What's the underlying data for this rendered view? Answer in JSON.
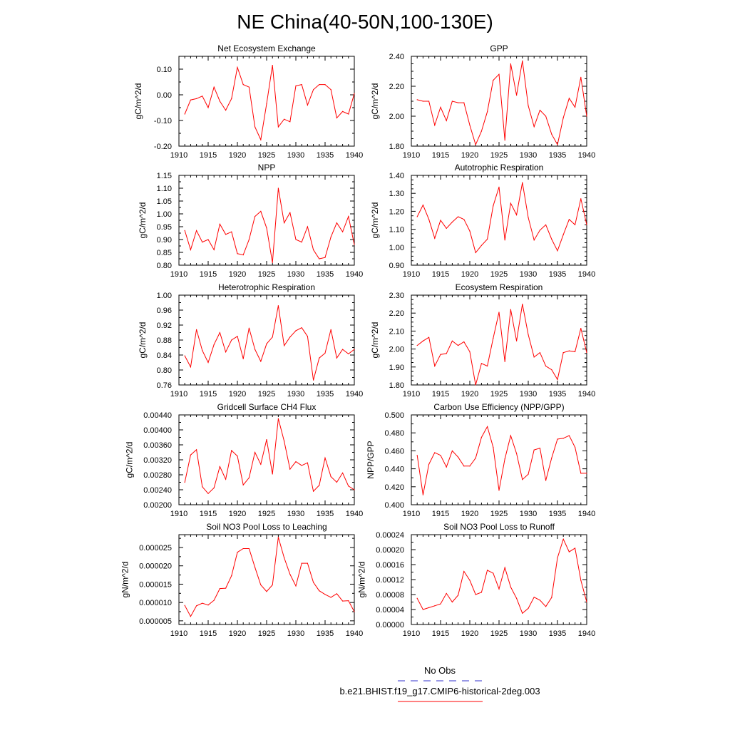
{
  "title": "NE China(40-50N,100-130E)",
  "colors": {
    "model_line": "#ff0000",
    "obs_line": "#0000ff",
    "axis": "#000000"
  },
  "legend": {
    "entries": [
      {
        "label": "No Obs",
        "style": "dashed",
        "color": "#3333cc"
      },
      {
        "label": "b.e21.BHIST.f19_g17.CMIP6-historical-2deg.003",
        "style": "solid",
        "color": "#ff0000"
      }
    ]
  },
  "chart_data": [
    {
      "type": "line",
      "title": "Net Ecosystem Exchange",
      "ylabel": "gC/m^2/d",
      "xlim": [
        1910,
        1940
      ],
      "ylim": [
        -0.2,
        0.15
      ],
      "xticks": [
        1910,
        1915,
        1920,
        1925,
        1930,
        1935,
        1940
      ],
      "xtick_labels": [
        "1910",
        "1915",
        "1920",
        "1925",
        "1930",
        "1935",
        "1940"
      ],
      "yticks": [
        -0.2,
        -0.1,
        0.0,
        0.1
      ],
      "ytick_labels": [
        "-0.20",
        "-0.10",
        "0.00",
        "0.10"
      ],
      "yminor": [
        -0.15,
        -0.05,
        0.05
      ],
      "x": [
        1911,
        1912,
        1913,
        1914,
        1915,
        1916,
        1917,
        1918,
        1919,
        1920,
        1921,
        1922,
        1923,
        1924,
        1925,
        1926,
        1927,
        1928,
        1929,
        1930,
        1931,
        1932,
        1933,
        1934,
        1935,
        1936,
        1937,
        1938,
        1939,
        1940
      ],
      "y": [
        -0.075,
        -0.02,
        -0.015,
        -0.005,
        -0.05,
        0.03,
        -0.025,
        -0.06,
        -0.015,
        0.107,
        0.04,
        0.03,
        -0.125,
        -0.175,
        -0.035,
        0.115,
        -0.125,
        -0.095,
        -0.105,
        0.035,
        0.04,
        -0.04,
        0.02,
        0.04,
        0.04,
        0.02,
        -0.09,
        -0.065,
        -0.075,
        0.005
      ]
    },
    {
      "type": "line",
      "title": "GPP",
      "ylabel": "gC/m^2/d",
      "xlim": [
        1910,
        1940
      ],
      "ylim": [
        1.8,
        2.4
      ],
      "xticks": [
        1910,
        1915,
        1920,
        1925,
        1930,
        1935,
        1940
      ],
      "xtick_labels": [
        "1910",
        "1915",
        "1920",
        "1925",
        "1930",
        "1935",
        "1940"
      ],
      "yticks": [
        1.8,
        2.0,
        2.2,
        2.4
      ],
      "ytick_labels": [
        "1.80",
        "2.00",
        "2.20",
        "2.40"
      ],
      "yminor": [
        1.85,
        1.9,
        1.95,
        2.05,
        2.1,
        2.15,
        2.25,
        2.3,
        2.35
      ],
      "x": [
        1911,
        1912,
        1913,
        1914,
        1915,
        1916,
        1917,
        1918,
        1919,
        1920,
        1921,
        1922,
        1923,
        1924,
        1925,
        1926,
        1927,
        1928,
        1929,
        1930,
        1931,
        1932,
        1933,
        1934,
        1935,
        1936,
        1937,
        1938,
        1939,
        1940
      ],
      "y": [
        2.11,
        2.1,
        2.1,
        1.94,
        2.06,
        1.97,
        2.1,
        2.09,
        2.09,
        1.94,
        1.81,
        1.9,
        2.03,
        2.24,
        2.28,
        1.84,
        2.35,
        2.14,
        2.37,
        2.07,
        1.93,
        2.04,
        2.0,
        1.88,
        1.81,
        1.99,
        2.12,
        2.06,
        2.26,
        2.0
      ]
    },
    {
      "type": "line",
      "title": "NPP",
      "ylabel": "gC/m^2/d",
      "xlim": [
        1910,
        1940
      ],
      "ylim": [
        0.8,
        1.15
      ],
      "xticks": [
        1910,
        1915,
        1920,
        1925,
        1930,
        1935,
        1940
      ],
      "xtick_labels": [
        "1910",
        "1915",
        "1920",
        "1925",
        "1930",
        "1935",
        "1940"
      ],
      "yticks": [
        0.8,
        0.85,
        0.9,
        0.95,
        1.0,
        1.05,
        1.1,
        1.15
      ],
      "ytick_labels": [
        "0.80",
        "0.85",
        "0.90",
        "0.95",
        "1.00",
        "1.05",
        "1.10",
        "1.15"
      ],
      "yminor": [
        0.825,
        0.875,
        0.925,
        0.975,
        1.025,
        1.075,
        1.125
      ],
      "x": [
        1911,
        1912,
        1913,
        1914,
        1915,
        1916,
        1917,
        1918,
        1919,
        1920,
        1921,
        1922,
        1923,
        1924,
        1925,
        1926,
        1927,
        1928,
        1929,
        1930,
        1931,
        1932,
        1933,
        1934,
        1935,
        1936,
        1937,
        1938,
        1939,
        1940
      ],
      "y": [
        0.935,
        0.86,
        0.935,
        0.89,
        0.9,
        0.86,
        0.96,
        0.92,
        0.93,
        0.845,
        0.84,
        0.9,
        0.99,
        1.01,
        0.945,
        0.81,
        1.1,
        0.965,
        1.005,
        0.9,
        0.89,
        0.95,
        0.86,
        0.825,
        0.83,
        0.91,
        0.965,
        0.93,
        0.99,
        0.88
      ]
    },
    {
      "type": "line",
      "title": "Autotrophic Respiration",
      "ylabel": "gC/m^2/d",
      "xlim": [
        1910,
        1940
      ],
      "ylim": [
        0.9,
        1.4
      ],
      "xticks": [
        1910,
        1915,
        1920,
        1925,
        1930,
        1935,
        1940
      ],
      "xtick_labels": [
        "1910",
        "1915",
        "1920",
        "1925",
        "1930",
        "1935",
        "1940"
      ],
      "yticks": [
        0.9,
        1.0,
        1.1,
        1.2,
        1.3,
        1.4
      ],
      "ytick_labels": [
        "0.90",
        "1.00",
        "1.10",
        "1.20",
        "1.30",
        "1.40"
      ],
      "yminor": [
        0.925,
        0.95,
        0.975,
        1.025,
        1.05,
        1.075,
        1.125,
        1.15,
        1.175,
        1.225,
        1.25,
        1.275,
        1.325,
        1.35,
        1.375
      ],
      "x": [
        1911,
        1912,
        1913,
        1914,
        1915,
        1916,
        1917,
        1918,
        1919,
        1920,
        1921,
        1922,
        1923,
        1924,
        1925,
        1926,
        1927,
        1928,
        1929,
        1930,
        1931,
        1932,
        1933,
        1934,
        1935,
        1936,
        1937,
        1938,
        1939,
        1940
      ],
      "y": [
        1.17,
        1.235,
        1.155,
        1.05,
        1.15,
        1.105,
        1.14,
        1.17,
        1.155,
        1.09,
        0.97,
        1.01,
        1.045,
        1.23,
        1.335,
        1.04,
        1.245,
        1.18,
        1.36,
        1.165,
        1.04,
        1.095,
        1.125,
        1.045,
        0.98,
        1.07,
        1.155,
        1.125,
        1.27,
        1.125
      ]
    },
    {
      "type": "line",
      "title": "Heterotrophic Respiration",
      "ylabel": "gC/m^2/d",
      "xlim": [
        1910,
        1940
      ],
      "ylim": [
        0.76,
        1.0
      ],
      "xticks": [
        1910,
        1915,
        1920,
        1925,
        1930,
        1935,
        1940
      ],
      "xtick_labels": [
        "1910",
        "1915",
        "1920",
        "1925",
        "1930",
        "1935",
        "1940"
      ],
      "yticks": [
        0.76,
        0.8,
        0.84,
        0.88,
        0.92,
        0.96,
        1.0
      ],
      "ytick_labels": [
        "0.76",
        "0.80",
        "0.84",
        "0.88",
        "0.92",
        "0.96",
        "1.00"
      ],
      "yminor": [
        0.78,
        0.82,
        0.86,
        0.9,
        0.94,
        0.98
      ],
      "x": [
        1911,
        1912,
        1913,
        1914,
        1915,
        1916,
        1917,
        1918,
        1919,
        1920,
        1921,
        1922,
        1923,
        1924,
        1925,
        1926,
        1927,
        1928,
        1929,
        1930,
        1931,
        1932,
        1933,
        1934,
        1935,
        1936,
        1937,
        1938,
        1939,
        1940
      ],
      "y": [
        0.838,
        0.808,
        0.908,
        0.852,
        0.82,
        0.868,
        0.9,
        0.848,
        0.88,
        0.89,
        0.83,
        0.912,
        0.855,
        0.823,
        0.87,
        0.888,
        0.972,
        0.865,
        0.888,
        0.905,
        0.913,
        0.89,
        0.773,
        0.832,
        0.845,
        0.908,
        0.832,
        0.855,
        0.843,
        0.855
      ]
    },
    {
      "type": "line",
      "title": "Ecosystem Respiration",
      "ylabel": "gC/m^2/d",
      "xlim": [
        1910,
        1940
      ],
      "ylim": [
        1.8,
        2.3
      ],
      "xticks": [
        1910,
        1915,
        1920,
        1925,
        1930,
        1935,
        1940
      ],
      "xtick_labels": [
        "1910",
        "1915",
        "1920",
        "1925",
        "1930",
        "1935",
        "1940"
      ],
      "yticks": [
        1.8,
        1.9,
        2.0,
        2.1,
        2.2,
        2.3
      ],
      "ytick_labels": [
        "1.80",
        "1.90",
        "2.00",
        "2.10",
        "2.20",
        "2.30"
      ],
      "yminor": [
        1.825,
        1.85,
        1.875,
        1.925,
        1.95,
        1.975,
        2.025,
        2.05,
        2.075,
        2.125,
        2.15,
        2.175,
        2.225,
        2.25,
        2.275
      ],
      "x": [
        1911,
        1912,
        1913,
        1914,
        1915,
        1916,
        1917,
        1918,
        1919,
        1920,
        1921,
        1922,
        1923,
        1924,
        1925,
        1926,
        1927,
        1928,
        1929,
        1930,
        1931,
        1932,
        1933,
        1934,
        1935,
        1936,
        1937,
        1938,
        1939,
        1940
      ],
      "y": [
        2.02,
        2.045,
        2.065,
        1.905,
        1.97,
        1.975,
        2.045,
        2.02,
        2.04,
        1.985,
        1.8,
        1.92,
        1.905,
        2.06,
        2.205,
        1.93,
        2.22,
        2.045,
        2.25,
        2.08,
        1.955,
        1.98,
        1.905,
        1.885,
        1.83,
        1.98,
        1.99,
        1.985,
        2.115,
        1.98
      ]
    },
    {
      "type": "line",
      "title": "Gridcell Surface CH4 Flux",
      "ylabel": "gC/m^2/d",
      "xlim": [
        1910,
        1940
      ],
      "ylim": [
        0.002,
        0.0044
      ],
      "xticks": [
        1910,
        1915,
        1920,
        1925,
        1930,
        1935,
        1940
      ],
      "xtick_labels": [
        "1910",
        "1915",
        "1920",
        "1925",
        "1930",
        "1935",
        "1940"
      ],
      "yticks": [
        0.002,
        0.0024,
        0.0028,
        0.0032,
        0.0036,
        0.004,
        0.0044
      ],
      "ytick_labels": [
        "0.00200",
        "0.00240",
        "0.00280",
        "0.00320",
        "0.00360",
        "0.00400",
        "0.00440"
      ],
      "yminor": [
        0.0022,
        0.0026,
        0.003,
        0.0034,
        0.0038,
        0.0042
      ],
      "x": [
        1911,
        1912,
        1913,
        1914,
        1915,
        1916,
        1917,
        1918,
        1919,
        1920,
        1921,
        1922,
        1923,
        1924,
        1925,
        1926,
        1927,
        1928,
        1929,
        1930,
        1931,
        1932,
        1933,
        1934,
        1935,
        1936,
        1937,
        1938,
        1939,
        1940
      ],
      "y": [
        0.0026,
        0.00333,
        0.00347,
        0.00248,
        0.0023,
        0.00245,
        0.00302,
        0.00268,
        0.00345,
        0.0033,
        0.00253,
        0.00272,
        0.0034,
        0.00308,
        0.00374,
        0.00282,
        0.0043,
        0.0037,
        0.00295,
        0.00315,
        0.00305,
        0.00312,
        0.00236,
        0.00252,
        0.00325,
        0.00275,
        0.0026,
        0.00285,
        0.0025,
        0.0024
      ]
    },
    {
      "type": "line",
      "title": "Carbon Use Efficiency (NPP/GPP)",
      "ylabel": "NPP/GPP",
      "xlim": [
        1910,
        1940
      ],
      "ylim": [
        0.4,
        0.5
      ],
      "xticks": [
        1910,
        1915,
        1920,
        1925,
        1930,
        1935,
        1940
      ],
      "xtick_labels": [
        "1910",
        "1915",
        "1920",
        "1925",
        "1930",
        "1935",
        "1940"
      ],
      "yticks": [
        0.4,
        0.42,
        0.44,
        0.46,
        0.48,
        0.5
      ],
      "ytick_labels": [
        "0.400",
        "0.420",
        "0.440",
        "0.460",
        "0.480",
        "0.500"
      ],
      "yminor": [
        0.41,
        0.43,
        0.45,
        0.47,
        0.49
      ],
      "x": [
        1911,
        1912,
        1913,
        1914,
        1915,
        1916,
        1917,
        1918,
        1919,
        1920,
        1921,
        1922,
        1923,
        1924,
        1925,
        1926,
        1927,
        1928,
        1929,
        1930,
        1931,
        1932,
        1933,
        1934,
        1935,
        1936,
        1937,
        1938,
        1939,
        1940
      ],
      "y": [
        0.455,
        0.411,
        0.445,
        0.458,
        0.455,
        0.442,
        0.46,
        0.453,
        0.443,
        0.443,
        0.452,
        0.475,
        0.487,
        0.464,
        0.416,
        0.451,
        0.477,
        0.457,
        0.428,
        0.434,
        0.461,
        0.463,
        0.427,
        0.452,
        0.473,
        0.474,
        0.477,
        0.464,
        0.435,
        0.435
      ]
    },
    {
      "type": "line",
      "title": "Soil NO3 Pool Loss to Leaching",
      "ylabel": "gN/m^2/d",
      "xlim": [
        1910,
        1940
      ],
      "ylim": [
        4e-06,
        2.85e-05
      ],
      "xticks": [
        1910,
        1915,
        1920,
        1925,
        1930,
        1935,
        1940
      ],
      "xtick_labels": [
        "1910",
        "1915",
        "1920",
        "1925",
        "1930",
        "1935",
        "1940"
      ],
      "yticks": [
        5e-06,
        1e-05,
        1.5e-05,
        2e-05,
        2.5e-05
      ],
      "ytick_labels": [
        "0.000005",
        "0.000010",
        "0.000015",
        "0.000020",
        "0.000025"
      ],
      "yminor": [
        7.5e-06,
        1.25e-05,
        1.75e-05,
        2.25e-05,
        2.75e-05
      ],
      "x": [
        1911,
        1912,
        1913,
        1914,
        1915,
        1916,
        1917,
        1918,
        1919,
        1920,
        1921,
        1922,
        1923,
        1924,
        1925,
        1926,
        1927,
        1928,
        1929,
        1930,
        1931,
        1932,
        1933,
        1934,
        1935,
        1936,
        1937,
        1938,
        1939,
        1940
      ],
      "y": [
        9.2e-06,
        6.2e-06,
        9.1e-06,
        9.8e-06,
        9.3e-06,
        1.06e-05,
        1.38e-05,
        1.39e-05,
        1.73e-05,
        2.37e-05,
        2.47e-05,
        2.47e-05,
        1.96e-05,
        1.48e-05,
        1.3e-05,
        1.48e-05,
        2.78e-05,
        2.22e-05,
        1.77e-05,
        1.45e-05,
        2.07e-05,
        2.07e-05,
        1.55e-05,
        1.32e-05,
        1.22e-05,
        1.14e-05,
        1.24e-05,
        1.04e-05,
        1.05e-05,
        7.5e-06
      ]
    },
    {
      "type": "line",
      "title": "Soil NO3 Pool Loss to Runoff",
      "ylabel": "gN/m^2/d",
      "xlim": [
        1910,
        1940
      ],
      "ylim": [
        0.0,
        0.00024
      ],
      "xticks": [
        1910,
        1915,
        1920,
        1925,
        1930,
        1935,
        1940
      ],
      "xtick_labels": [
        "1910",
        "1915",
        "1920",
        "1925",
        "1930",
        "1935",
        "1940"
      ],
      "yticks": [
        0.0,
        4e-05,
        8e-05,
        0.00012,
        0.00016,
        0.0002,
        0.00024
      ],
      "ytick_labels": [
        "0.00000",
        "0.00004",
        "0.00008",
        "0.00012",
        "0.00016",
        "0.00020",
        "0.00024"
      ],
      "yminor": [
        2e-05,
        6e-05,
        0.0001,
        0.00014,
        0.00018,
        0.00022
      ],
      "x": [
        1911,
        1912,
        1913,
        1914,
        1915,
        1916,
        1917,
        1918,
        1919,
        1920,
        1921,
        1922,
        1923,
        1924,
        1925,
        1926,
        1927,
        1928,
        1929,
        1930,
        1931,
        1932,
        1933,
        1934,
        1935,
        1936,
        1937,
        1938,
        1939,
        1940
      ],
      "y": [
        7e-05,
        4e-05,
        4.5e-05,
        5e-05,
        5.5e-05,
        8.3e-05,
        6e-05,
        7.8e-05,
        0.000142,
        0.000118,
        8e-05,
        8.6e-05,
        0.000145,
        0.000137,
        9.5e-05,
        0.000152,
        0.0001,
        7e-05,
        3e-05,
        4.3e-05,
        7.3e-05,
        6.5e-05,
        4.8e-05,
        7.2e-05,
        0.000178,
        0.000228,
        0.000194,
        0.000204,
        0.000118,
        6e-05
      ]
    }
  ]
}
